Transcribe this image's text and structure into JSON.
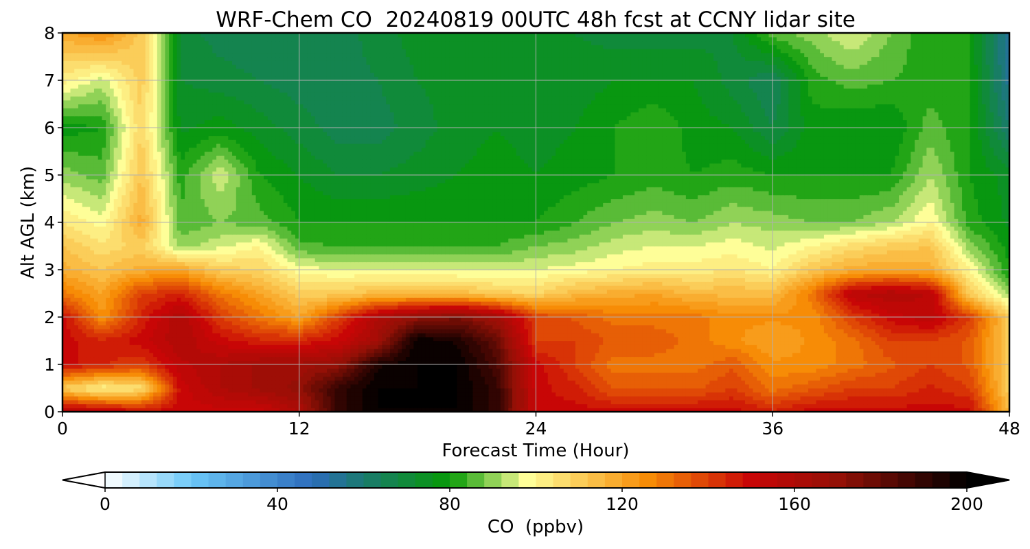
{
  "chart_data": {
    "type": "heatmap",
    "subtype": "filled-contour time-height section",
    "title": "WRF-Chem CO  20240819 00UTC 48h fcst at CCNY lidar site",
    "xlabel": "Forecast Time (Hour)",
    "ylabel": "Alt AGL (km)",
    "xlim": [
      0,
      48
    ],
    "ylim": [
      0,
      8
    ],
    "xticks": [
      "0",
      "12",
      "24",
      "36",
      "48"
    ],
    "yticks": [
      "0",
      "1",
      "2",
      "3",
      "4",
      "5",
      "6",
      "7",
      "8"
    ],
    "grid": true,
    "colorbar": {
      "label": "CO  (ppbv)",
      "min": 0,
      "max": 200,
      "step": 4,
      "extend": "both",
      "ticks": [
        "0",
        "40",
        "80",
        "120",
        "160",
        "200"
      ],
      "color_stops": [
        {
          "value": 0,
          "color": "#ffffff"
        },
        {
          "value": 20,
          "color": "#6cc8f8"
        },
        {
          "value": 48,
          "color": "#2c6cbc"
        },
        {
          "value": 60,
          "color": "#1a7a6e"
        },
        {
          "value": 80,
          "color": "#069a06"
        },
        {
          "value": 98,
          "color": "#fefe98"
        },
        {
          "value": 126,
          "color": "#f78c06"
        },
        {
          "value": 150,
          "color": "#c80606"
        },
        {
          "value": 170,
          "color": "#941006"
        },
        {
          "value": 200,
          "color": "#000000"
        }
      ],
      "under_color": "#ffffff",
      "over_color": "#000000"
    },
    "x_hours": [
      0,
      2,
      4,
      6,
      8,
      10,
      12,
      14,
      16,
      18,
      20,
      22,
      24,
      26,
      28,
      30,
      32,
      34,
      36,
      38,
      40,
      42,
      44,
      46,
      48
    ],
    "y_km": [
      0,
      0.5,
      1,
      1.5,
      2,
      2.5,
      3,
      3.5,
      4,
      5,
      6,
      7,
      8
    ],
    "values_ppbv": [
      [
        160,
        155,
        150,
        150,
        150,
        150,
        160,
        190,
        200,
        200,
        200,
        190,
        150,
        150,
        150,
        150,
        150,
        150,
        145,
        150,
        150,
        150,
        150,
        150,
        115
      ],
      [
        110,
        100,
        105,
        150,
        160,
        165,
        170,
        190,
        200,
        200,
        200,
        190,
        150,
        145,
        135,
        135,
        135,
        140,
        130,
        135,
        140,
        140,
        145,
        140,
        110
      ],
      [
        150,
        145,
        140,
        155,
        160,
        165,
        165,
        170,
        195,
        200,
        200,
        185,
        150,
        140,
        130,
        130,
        130,
        135,
        125,
        125,
        130,
        135,
        140,
        135,
        110
      ],
      [
        150,
        145,
        150,
        160,
        150,
        145,
        145,
        150,
        165,
        200,
        195,
        180,
        140,
        140,
        135,
        135,
        130,
        125,
        120,
        125,
        130,
        140,
        140,
        135,
        110
      ],
      [
        150,
        125,
        145,
        160,
        140,
        130,
        120,
        140,
        160,
        170,
        175,
        165,
        140,
        135,
        130,
        130,
        130,
        125,
        125,
        125,
        140,
        150,
        155,
        140,
        110
      ],
      [
        130,
        120,
        140,
        145,
        130,
        120,
        110,
        110,
        115,
        115,
        115,
        110,
        108,
        115,
        118,
        120,
        115,
        115,
        115,
        130,
        155,
        160,
        155,
        110,
        90
      ],
      [
        118,
        112,
        118,
        120,
        110,
        108,
        98,
        96,
        96,
        95,
        95,
        95,
        96,
        98,
        100,
        102,
        102,
        104,
        100,
        112,
        118,
        120,
        118,
        100,
        80
      ],
      [
        112,
        105,
        110,
        90,
        95,
        100,
        85,
        84,
        84,
        84,
        84,
        84,
        88,
        90,
        94,
        96,
        96,
        98,
        95,
        100,
        106,
        110,
        112,
        90,
        78
      ],
      [
        104,
        98,
        118,
        85,
        88,
        86,
        80,
        80,
        80,
        80,
        80,
        80,
        80,
        84,
        88,
        90,
        88,
        92,
        90,
        88,
        88,
        92,
        100,
        82,
        75
      ],
      [
        90,
        86,
        112,
        82,
        95,
        80,
        76,
        72,
        72,
        74,
        76,
        78,
        76,
        78,
        80,
        82,
        80,
        82,
        80,
        80,
        80,
        80,
        92,
        80,
        74
      ],
      [
        78,
        80,
        108,
        75,
        78,
        74,
        70,
        66,
        66,
        70,
        74,
        76,
        74,
        76,
        80,
        84,
        78,
        76,
        68,
        78,
        76,
        76,
        86,
        80,
        60
      ],
      [
        102,
        94,
        110,
        72,
        70,
        68,
        66,
        66,
        68,
        72,
        74,
        76,
        74,
        74,
        76,
        76,
        76,
        70,
        64,
        82,
        86,
        84,
        82,
        80,
        54
      ],
      [
        118,
        125,
        110,
        70,
        66,
        64,
        64,
        66,
        70,
        74,
        74,
        74,
        72,
        72,
        70,
        70,
        70,
        72,
        86,
        90,
        96,
        88,
        80,
        80,
        52
      ]
    ]
  }
}
